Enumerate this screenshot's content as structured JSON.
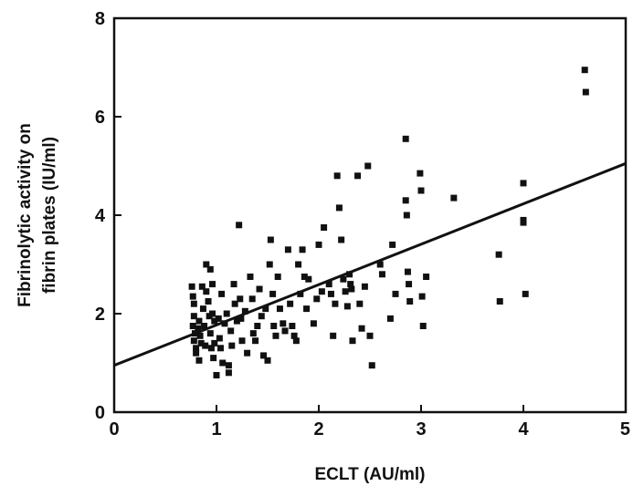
{
  "chart_data": {
    "type": "scatter",
    "title": "",
    "xlabel": "ECLT  (AU/ml)",
    "ylabel_lines": [
      "Fibrinolytic activity on",
      "fibrin plates (IU/ml)"
    ],
    "xlim": [
      0,
      5
    ],
    "ylim": [
      0,
      8
    ],
    "x_ticks": [
      0,
      1,
      2,
      3,
      4,
      5
    ],
    "y_ticks": [
      0,
      2,
      4,
      6,
      8
    ],
    "grid": false,
    "marker_color": "#111111",
    "points": [
      [
        0.76,
        2.55
      ],
      [
        0.77,
        2.35
      ],
      [
        0.78,
        2.2
      ],
      [
        0.78,
        1.95
      ],
      [
        0.77,
        1.75
      ],
      [
        0.79,
        1.6
      ],
      [
        0.78,
        1.45
      ],
      [
        0.8,
        1.3
      ],
      [
        0.8,
        1.2
      ],
      [
        0.82,
        1.7
      ],
      [
        0.83,
        1.85
      ],
      [
        0.84,
        1.55
      ],
      [
        0.85,
        1.4
      ],
      [
        0.83,
        1.05
      ],
      [
        0.86,
        2.55
      ],
      [
        0.87,
        2.1
      ],
      [
        0.88,
        1.75
      ],
      [
        0.89,
        1.35
      ],
      [
        0.9,
        2.45
      ],
      [
        0.9,
        3.0
      ],
      [
        0.92,
        2.25
      ],
      [
        0.93,
        1.95
      ],
      [
        0.94,
        2.9
      ],
      [
        0.94,
        1.6
      ],
      [
        0.95,
        1.3
      ],
      [
        0.96,
        2.0
      ],
      [
        0.96,
        2.6
      ],
      [
        0.97,
        1.1
      ],
      [
        0.98,
        1.85
      ],
      [
        0.98,
        1.4
      ],
      [
        1.0,
        0.75
      ],
      [
        1.02,
        1.9
      ],
      [
        1.03,
        1.5
      ],
      [
        1.04,
        1.3
      ],
      [
        1.05,
        2.4
      ],
      [
        1.06,
        1.0
      ],
      [
        1.08,
        1.8
      ],
      [
        1.1,
        2.0
      ],
      [
        1.12,
        0.95
      ],
      [
        1.12,
        0.8
      ],
      [
        1.14,
        1.65
      ],
      [
        1.15,
        1.35
      ],
      [
        1.17,
        2.6
      ],
      [
        1.18,
        2.2
      ],
      [
        1.2,
        1.85
      ],
      [
        1.22,
        3.8
      ],
      [
        1.23,
        2.3
      ],
      [
        1.24,
        1.9
      ],
      [
        1.25,
        1.45
      ],
      [
        1.28,
        2.05
      ],
      [
        1.3,
        1.2
      ],
      [
        1.33,
        2.75
      ],
      [
        1.35,
        2.3
      ],
      [
        1.36,
        1.6
      ],
      [
        1.38,
        1.45
      ],
      [
        1.4,
        1.75
      ],
      [
        1.42,
        2.5
      ],
      [
        1.44,
        1.95
      ],
      [
        1.46,
        1.15
      ],
      [
        1.48,
        2.1
      ],
      [
        1.5,
        1.05
      ],
      [
        1.52,
        3.0
      ],
      [
        1.53,
        3.5
      ],
      [
        1.55,
        2.4
      ],
      [
        1.56,
        1.75
      ],
      [
        1.58,
        1.55
      ],
      [
        1.6,
        2.75
      ],
      [
        1.62,
        2.1
      ],
      [
        1.65,
        1.8
      ],
      [
        1.67,
        1.65
      ],
      [
        1.7,
        3.3
      ],
      [
        1.72,
        2.2
      ],
      [
        1.74,
        1.75
      ],
      [
        1.76,
        1.55
      ],
      [
        1.78,
        1.45
      ],
      [
        1.8,
        3.0
      ],
      [
        1.82,
        2.4
      ],
      [
        1.84,
        3.3
      ],
      [
        1.86,
        2.75
      ],
      [
        1.88,
        2.1
      ],
      [
        1.9,
        2.7
      ],
      [
        1.95,
        1.8
      ],
      [
        1.98,
        2.3
      ],
      [
        2.0,
        3.4
      ],
      [
        2.03,
        2.45
      ],
      [
        2.05,
        3.75
      ],
      [
        2.1,
        2.6
      ],
      [
        2.12,
        2.4
      ],
      [
        2.14,
        1.55
      ],
      [
        2.16,
        2.2
      ],
      [
        2.18,
        4.8
      ],
      [
        2.2,
        4.15
      ],
      [
        2.22,
        3.5
      ],
      [
        2.24,
        2.7
      ],
      [
        2.26,
        2.45
      ],
      [
        2.28,
        2.15
      ],
      [
        2.3,
        2.8
      ],
      [
        2.31,
        2.6
      ],
      [
        2.32,
        2.5
      ],
      [
        2.33,
        1.45
      ],
      [
        2.38,
        4.8
      ],
      [
        2.4,
        2.2
      ],
      [
        2.42,
        1.7
      ],
      [
        2.45,
        2.55
      ],
      [
        2.48,
        5.0
      ],
      [
        2.5,
        1.55
      ],
      [
        2.52,
        0.95
      ],
      [
        2.6,
        3.0
      ],
      [
        2.62,
        2.8
      ],
      [
        2.7,
        1.9
      ],
      [
        2.72,
        3.4
      ],
      [
        2.75,
        2.4
      ],
      [
        2.85,
        5.55
      ],
      [
        2.85,
        4.3
      ],
      [
        2.86,
        4.0
      ],
      [
        2.87,
        2.85
      ],
      [
        2.88,
        2.6
      ],
      [
        2.89,
        2.25
      ],
      [
        2.99,
        4.85
      ],
      [
        3.0,
        4.5
      ],
      [
        3.01,
        2.35
      ],
      [
        3.02,
        1.75
      ],
      [
        3.05,
        2.75
      ],
      [
        3.32,
        4.35
      ],
      [
        3.76,
        3.2
      ],
      [
        3.77,
        2.25
      ],
      [
        4.0,
        4.65
      ],
      [
        4.0,
        3.9
      ],
      [
        4.0,
        3.85
      ],
      [
        4.02,
        2.4
      ],
      [
        4.6,
        6.95
      ],
      [
        4.61,
        6.5
      ]
    ],
    "regression_line": {
      "x": [
        0,
        5
      ],
      "y": [
        0.95,
        5.05
      ]
    }
  }
}
